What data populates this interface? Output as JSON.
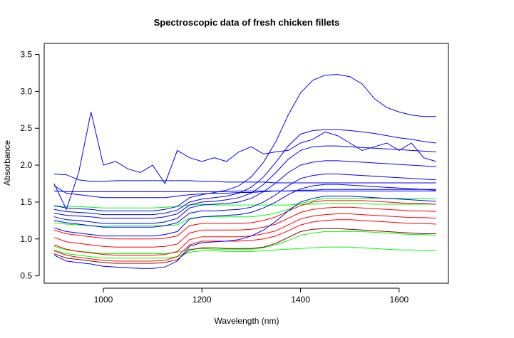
{
  "chart_data": {
    "type": "line",
    "title": "Spectroscopic data of fresh chicken fillets",
    "xlabel": "Wavelength (nm)",
    "ylabel": "Absorbance",
    "xlim": [
      880,
      1700
    ],
    "ylim": [
      0.4,
      3.65
    ],
    "xticks": [
      1000,
      1200,
      1400,
      1600
    ],
    "yticks": [
      0.5,
      1.0,
      1.5,
      2.0,
      2.5,
      3.0,
      3.5
    ],
    "xtick_labels": [
      "1000",
      "1200",
      "1400",
      "1600"
    ],
    "ytick_labels": [
      "0.5",
      "1.0",
      "1.5",
      "2.0",
      "2.5",
      "3.0",
      "3.5"
    ],
    "grid": false,
    "legend": "none",
    "colors": {
      "blue_group": "#0000ff",
      "red_group": "#ff0000",
      "green_group": "#00ff00",
      "dark_red_group": "#8b0000"
    },
    "x": [
      900,
      925,
      950,
      975,
      1000,
      1025,
      1050,
      1075,
      1100,
      1125,
      1150,
      1175,
      1200,
      1225,
      1250,
      1275,
      1300,
      1325,
      1350,
      1375,
      1400,
      1425,
      1450,
      1475,
      1500,
      1525,
      1550,
      1575,
      1600,
      1625,
      1650,
      1675
    ],
    "series": [
      {
        "color": "#00ff00",
        "values": [
          1.22,
          1.2,
          1.19,
          1.18,
          1.17,
          1.18,
          1.18,
          1.18,
          1.18,
          1.18,
          1.19,
          1.28,
          1.3,
          1.3,
          1.3,
          1.3,
          1.3,
          1.32,
          1.35,
          1.4,
          1.48,
          1.52,
          1.55,
          1.55,
          1.55,
          1.55,
          1.55,
          1.55,
          1.55,
          1.55,
          1.55,
          1.54
        ]
      },
      {
        "color": "#00ff00",
        "values": [
          0.9,
          0.85,
          0.83,
          0.82,
          0.8,
          0.8,
          0.8,
          0.8,
          0.8,
          0.8,
          0.82,
          0.86,
          0.87,
          0.86,
          0.86,
          0.86,
          0.86,
          0.88,
          0.92,
          0.98,
          1.05,
          1.08,
          1.1,
          1.1,
          1.1,
          1.1,
          1.09,
          1.08,
          1.07,
          1.06,
          1.06,
          1.05
        ]
      },
      {
        "color": "#00ff00",
        "values": [
          1.45,
          1.44,
          1.44,
          1.43,
          1.42,
          1.42,
          1.42,
          1.42,
          1.42,
          1.43,
          1.44,
          1.46,
          1.47,
          1.46,
          1.46,
          1.46,
          1.46,
          1.46,
          1.46,
          1.46,
          1.47,
          1.47,
          1.48,
          1.48,
          1.48,
          1.48,
          1.47,
          1.47,
          1.47,
          1.47,
          1.47,
          1.47
        ]
      },
      {
        "color": "#00ff00",
        "values": [
          0.85,
          0.8,
          0.78,
          0.76,
          0.74,
          0.74,
          0.74,
          0.74,
          0.74,
          0.74,
          0.76,
          0.82,
          0.84,
          0.84,
          0.83,
          0.83,
          0.83,
          0.84,
          0.85,
          0.86,
          0.87,
          0.88,
          0.89,
          0.89,
          0.89,
          0.88,
          0.87,
          0.86,
          0.85,
          0.85,
          0.84,
          0.84
        ]
      },
      {
        "color": "#ff0000",
        "values": [
          1.12,
          1.07,
          1.05,
          1.03,
          1.01,
          1.0,
          1.0,
          1.0,
          1.0,
          1.01,
          1.04,
          1.18,
          1.21,
          1.21,
          1.21,
          1.21,
          1.22,
          1.25,
          1.3,
          1.38,
          1.45,
          1.5,
          1.52,
          1.52,
          1.52,
          1.52,
          1.51,
          1.5,
          1.49,
          1.48,
          1.48,
          1.47
        ]
      },
      {
        "color": "#ff0000",
        "values": [
          1.02,
          0.96,
          0.94,
          0.92,
          0.9,
          0.89,
          0.89,
          0.89,
          0.89,
          0.9,
          0.93,
          1.08,
          1.12,
          1.12,
          1.12,
          1.12,
          1.13,
          1.16,
          1.2,
          1.28,
          1.36,
          1.4,
          1.42,
          1.43,
          1.43,
          1.42,
          1.41,
          1.4,
          1.39,
          1.38,
          1.38,
          1.37
        ]
      },
      {
        "color": "#ff0000",
        "values": [
          0.92,
          0.86,
          0.83,
          0.81,
          0.79,
          0.78,
          0.78,
          0.78,
          0.78,
          0.79,
          0.83,
          0.99,
          1.03,
          1.03,
          1.03,
          1.03,
          1.04,
          1.07,
          1.11,
          1.19,
          1.27,
          1.31,
          1.33,
          1.34,
          1.34,
          1.33,
          1.32,
          1.31,
          1.3,
          1.29,
          1.29,
          1.28
        ]
      },
      {
        "color": "#ff0000",
        "values": [
          0.84,
          0.78,
          0.75,
          0.73,
          0.71,
          0.7,
          0.7,
          0.7,
          0.7,
          0.71,
          0.76,
          0.92,
          0.97,
          0.97,
          0.97,
          0.97,
          0.98,
          1.0,
          1.04,
          1.11,
          1.19,
          1.23,
          1.25,
          1.26,
          1.26,
          1.25,
          1.24,
          1.23,
          1.22,
          1.21,
          1.21,
          1.2
        ]
      },
      {
        "color": "#8b0000",
        "values": [
          0.8,
          0.74,
          0.72,
          0.7,
          0.68,
          0.67,
          0.67,
          0.67,
          0.67,
          0.68,
          0.72,
          0.85,
          0.88,
          0.88,
          0.87,
          0.87,
          0.87,
          0.89,
          0.94,
          1.02,
          1.1,
          1.13,
          1.14,
          1.14,
          1.13,
          1.12,
          1.11,
          1.1,
          1.09,
          1.08,
          1.07,
          1.07
        ]
      },
      {
        "color": "#0000ff",
        "values": [
          1.25,
          1.22,
          1.2,
          1.18,
          1.16,
          1.16,
          1.16,
          1.16,
          1.16,
          1.18,
          1.22,
          1.35,
          1.38,
          1.38,
          1.39,
          1.4,
          1.43,
          1.5,
          1.6,
          1.72,
          1.82,
          1.86,
          1.88,
          1.88,
          1.87,
          1.86,
          1.85,
          1.84,
          1.83,
          1.82,
          1.81,
          1.8
        ]
      },
      {
        "color": "#0000ff",
        "values": [
          1.15,
          1.1,
          1.08,
          1.06,
          1.04,
          1.04,
          1.04,
          1.04,
          1.04,
          1.06,
          1.1,
          1.27,
          1.3,
          1.31,
          1.32,
          1.33,
          1.36,
          1.42,
          1.5,
          1.6,
          1.68,
          1.72,
          1.74,
          1.74,
          1.73,
          1.72,
          1.71,
          1.7,
          1.69,
          1.68,
          1.67,
          1.66
        ]
      },
      {
        "color": "#0000ff",
        "values": [
          1.3,
          1.26,
          1.25,
          1.23,
          1.21,
          1.21,
          1.21,
          1.21,
          1.21,
          1.23,
          1.28,
          1.42,
          1.46,
          1.47,
          1.48,
          1.5,
          1.55,
          1.64,
          1.76,
          1.9,
          2.0,
          2.04,
          2.06,
          2.06,
          2.05,
          2.04,
          2.03,
          2.02,
          2.01,
          2.0,
          1.99,
          1.98
        ]
      },
      {
        "color": "#0000ff",
        "values": [
          0.78,
          0.7,
          0.68,
          0.66,
          0.63,
          0.62,
          0.61,
          0.6,
          0.6,
          0.62,
          0.7,
          0.9,
          0.95,
          0.96,
          0.97,
          0.99,
          1.04,
          1.12,
          1.24,
          1.38,
          1.5,
          1.55,
          1.58,
          1.58,
          1.58,
          1.57,
          1.56,
          1.55,
          1.54,
          1.53,
          1.52,
          1.51
        ]
      },
      {
        "color": "#0000ff",
        "values": [
          1.35,
          1.32,
          1.31,
          1.3,
          1.28,
          1.28,
          1.28,
          1.28,
          1.28,
          1.3,
          1.34,
          1.46,
          1.5,
          1.51,
          1.53,
          1.56,
          1.62,
          1.74,
          1.9,
          2.08,
          2.2,
          2.25,
          2.26,
          2.26,
          2.25,
          2.24,
          2.23,
          2.22,
          2.21,
          2.2,
          2.19,
          2.18
        ]
      },
      {
        "color": "#0000ff",
        "values": [
          1.4,
          1.37,
          1.36,
          1.35,
          1.33,
          1.33,
          1.33,
          1.33,
          1.33,
          1.35,
          1.39,
          1.5,
          1.54,
          1.56,
          1.58,
          1.62,
          1.7,
          1.84,
          2.04,
          2.26,
          2.42,
          2.47,
          2.48,
          2.48,
          2.47,
          2.45,
          2.43,
          2.4,
          2.37,
          2.35,
          2.32,
          2.3
        ]
      },
      {
        "color": "#0000ff",
        "values": [
          1.45,
          1.42,
          1.41,
          1.4,
          1.38,
          1.38,
          1.38,
          1.38,
          1.38,
          1.4,
          1.44,
          1.56,
          1.6,
          1.63,
          1.66,
          1.72,
          1.84,
          2.04,
          2.32,
          2.68,
          2.98,
          3.15,
          3.22,
          3.23,
          3.2,
          3.1,
          2.9,
          2.78,
          2.72,
          2.68,
          2.66,
          2.66
        ]
      },
      {
        "color": "#0000ff",
        "values": [
          1.72,
          1.62,
          1.6,
          1.58,
          1.56,
          1.56,
          1.56,
          1.56,
          1.56,
          1.56,
          1.58,
          1.6,
          1.61,
          1.62,
          1.62,
          1.63,
          1.63,
          1.64,
          1.65,
          1.65,
          1.66,
          1.66,
          1.67,
          1.67,
          1.67,
          1.67,
          1.67,
          1.67,
          1.67,
          1.67,
          1.67,
          1.67
        ]
      },
      {
        "color": "#0000ff",
        "values": [
          1.65,
          1.64,
          1.64,
          1.64,
          1.64,
          1.64,
          1.64,
          1.64,
          1.64,
          1.64,
          1.64,
          1.64,
          1.64,
          1.64,
          1.64,
          1.65,
          1.65,
          1.65,
          1.65,
          1.65,
          1.65,
          1.65,
          1.65,
          1.65,
          1.65,
          1.65,
          1.65,
          1.65,
          1.65,
          1.65,
          1.65,
          1.65
        ]
      },
      {
        "color": "#0000ff",
        "values": [
          1.88,
          1.87,
          1.8,
          1.78,
          1.78,
          1.79,
          1.79,
          1.79,
          1.79,
          1.79,
          1.79,
          1.79,
          1.78,
          1.78,
          1.77,
          1.77,
          1.77,
          1.77,
          1.76,
          1.76,
          1.76,
          1.76,
          1.76,
          1.76,
          1.76,
          1.76,
          1.76,
          1.76,
          1.76,
          1.76,
          1.76,
          1.76
        ]
      },
      {
        "color": "#0000ff",
        "values": [
          1.75,
          1.4,
          1.9,
          2.72,
          2.0,
          2.05,
          1.95,
          1.9,
          2.0,
          1.75,
          2.2,
          2.1,
          2.05,
          2.1,
          2.05,
          2.18,
          2.25,
          2.15,
          2.18,
          2.2,
          2.3,
          2.35,
          2.45,
          2.4,
          2.3,
          2.2,
          2.25,
          2.3,
          2.2,
          2.3,
          2.1,
          2.05
        ]
      }
    ]
  }
}
